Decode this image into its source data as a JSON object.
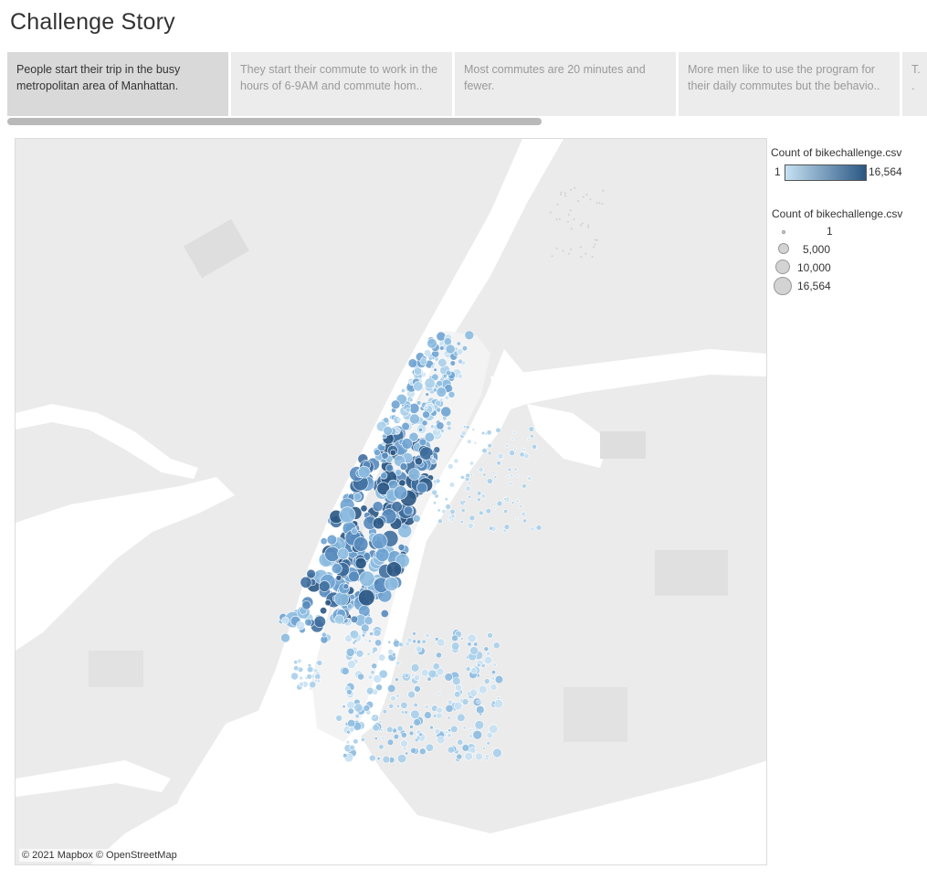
{
  "title": "Challenge Story",
  "story_points": [
    {
      "text": "People start their trip in the busy metropolitan area of Manhattan.",
      "active": true
    },
    {
      "text": "They start their commute to work in the hours of 6-9AM and commute hom..",
      "active": false
    },
    {
      "text": "Most commutes are 20 minutes and fewer.",
      "active": false
    },
    {
      "text": "More men like to use the program for their daily commutes but the behavio..",
      "active": false
    },
    {
      "text": "T.. .",
      "active": false
    }
  ],
  "map": {
    "attribution": "© 2021 Mapbox © OpenStreetMap"
  },
  "legend": {
    "color_title": "Count of bikechallenge.csv",
    "color_min": "1",
    "color_max": "16,564",
    "color_ramp": [
      "#c6e1f3",
      "#2a5783"
    ],
    "size_title": "Count of bikechallenge.csv",
    "size_items": [
      {
        "label": "1",
        "value": 1
      },
      {
        "label": "5,000",
        "value": 5000
      },
      {
        "label": "10,000",
        "value": 10000
      },
      {
        "label": "16,564",
        "value": 16564
      }
    ]
  },
  "colors": {
    "water": "#ffffff",
    "land": "#ebebeb",
    "land_light": "#f3f3f3",
    "park": "#dedede"
  }
}
